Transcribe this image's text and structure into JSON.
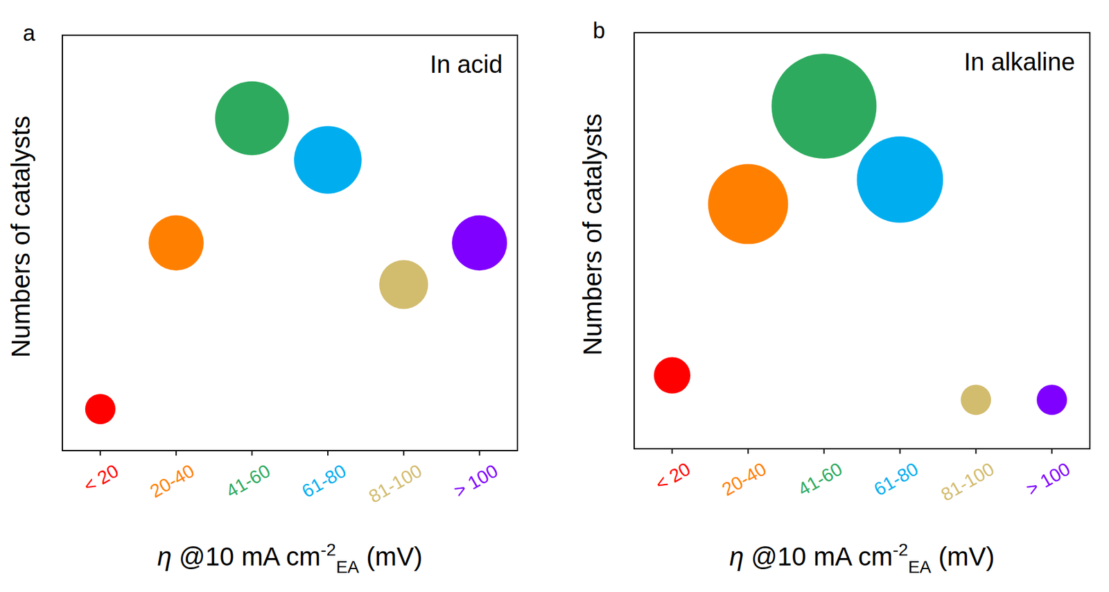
{
  "chart_data": [
    {
      "type": "bubble",
      "panel_label": "a",
      "annotation": "In acid",
      "y_label": "Numbers of catalysts",
      "x_label": {
        "symbol": "η",
        "text": " @10 mA cm",
        "superscript": "-2",
        "subscript": "EA",
        "unit": " (mV)"
      },
      "categories": [
        "< 20",
        "20-40",
        "41-60",
        "61-80",
        "81-100",
        "> 100"
      ],
      "values": [
        1,
        5,
        8,
        7,
        4,
        5
      ],
      "colors": [
        "#ff0000",
        "#ff8000",
        "#2eaa5e",
        "#00aeef",
        "#d2bc6e",
        "#8000ff"
      ],
      "ylim": [
        0,
        10
      ],
      "tick_labels": "x"
    },
    {
      "type": "bubble",
      "panel_label": "b",
      "annotation": "In alkaline",
      "y_label": "Numbers of catalysts",
      "x_label": {
        "symbol": "η",
        "text": " @10 mA cm",
        "superscript": "-2",
        "subscript": "EA",
        "unit": " (mV)"
      },
      "categories": [
        "< 20",
        "20-40",
        "41-60",
        "61-80",
        "81-100",
        "> 100"
      ],
      "values": [
        2,
        9,
        13,
        10,
        1,
        1
      ],
      "colors": [
        "#ff0000",
        "#ff8000",
        "#2eaa5e",
        "#00aeef",
        "#d2bc6e",
        "#8000ff"
      ],
      "ylim": [
        -1,
        16
      ],
      "tick_labels": "x"
    }
  ]
}
